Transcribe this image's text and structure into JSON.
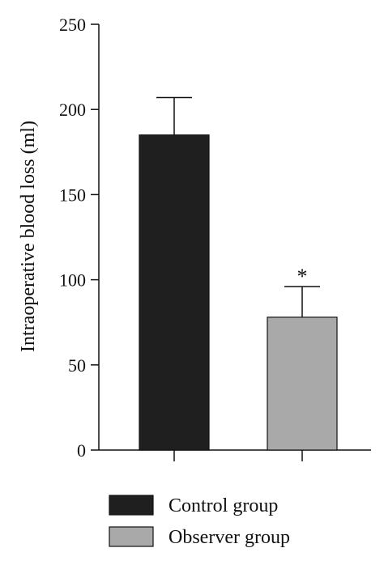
{
  "chart_data": {
    "type": "bar",
    "title": "",
    "xlabel": "",
    "ylabel": "Intraoperative blood loss (ml)",
    "ylim": [
      0,
      250
    ],
    "yticks": [
      0,
      50,
      100,
      150,
      200,
      250
    ],
    "grid": false,
    "legend_position": "bottom",
    "series": [
      {
        "name": "Control group",
        "value": 185,
        "error": 22,
        "color": "#1f1f1f",
        "annotation": ""
      },
      {
        "name": "Observer group",
        "value": 78,
        "error": 18,
        "color": "#a9a9a9",
        "annotation": "*"
      }
    ]
  }
}
